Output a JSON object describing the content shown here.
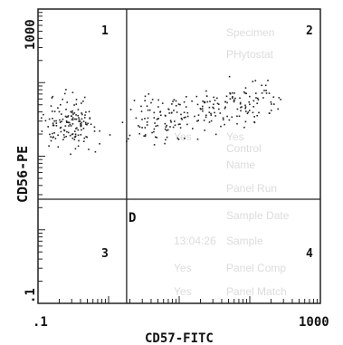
{
  "chart_data": {
    "type": "scatter",
    "xlabel": "CD57-FITC",
    "ylabel": "CD56-PE",
    "x_scale": "log",
    "y_scale": "log",
    "xlim": [
      0.1,
      1000
    ],
    "ylim": [
      0.1,
      1000
    ],
    "x_tick_labels": [
      ".1",
      "1000"
    ],
    "y_tick_labels": [
      ".1",
      "1000"
    ],
    "quadrant_gate": {
      "x": 1.8,
      "y": 2.6
    },
    "quadrant_labels": [
      "1",
      "2",
      "3",
      "4"
    ],
    "gate_marker": "D",
    "series": [
      {
        "points": []
      }
    ]
  },
  "background_text": {
    "right_column": [
      "Specimen",
      "PHytostat",
      "Yes",
      "Control",
      "Name",
      "Panel Run",
      "Sample Date",
      "Sample",
      "Panel Comp",
      "Panel Match"
    ],
    "left_column": [
      "Yes",
      "13:04:26",
      "Yes",
      "Yes"
    ]
  }
}
